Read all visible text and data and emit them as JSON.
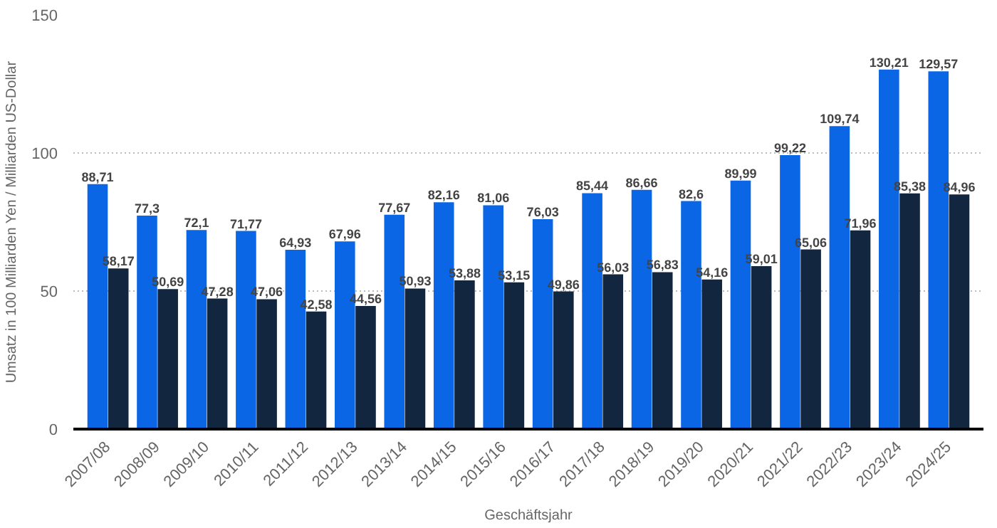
{
  "chart_data": {
    "type": "bar",
    "ylabel": "Umsatz in 100 Milliarden Yen / Milliarden US-Dollar",
    "xlabel": "Geschäftsjahr",
    "categories": [
      "2007/08",
      "2008/09",
      "2009/10",
      "2010/11",
      "2011/12",
      "2012/13",
      "2013/14",
      "2014/15",
      "2015/16",
      "2016/17",
      "2017/18",
      "2018/19",
      "2019/20",
      "2020/21",
      "2021/22",
      "2022/23",
      "2023/24",
      "2024/25"
    ],
    "series": [
      {
        "color": "#0a66e4",
        "values": [
          88.71,
          77.3,
          72.1,
          71.77,
          64.93,
          67.96,
          77.67,
          82.16,
          81.06,
          76.03,
          85.44,
          86.66,
          82.6,
          89.99,
          99.22,
          109.74,
          130.21,
          129.57
        ],
        "value_labels": [
          "88,71",
          "77,3",
          "72,1",
          "71,77",
          "64,93",
          "67,96",
          "77,67",
          "82,16",
          "81,06",
          "76,03",
          "85,44",
          "86,66",
          "82,6",
          "89,99",
          "99,22",
          "109,74",
          "130,21",
          "129,57"
        ]
      },
      {
        "color": "#12263f",
        "values": [
          58.17,
          50.69,
          47.28,
          47.06,
          42.58,
          44.56,
          50.93,
          53.88,
          53.15,
          49.86,
          56.03,
          56.83,
          54.16,
          59.01,
          65.06,
          71.96,
          85.38,
          84.96
        ],
        "value_labels": [
          "58,17",
          "50,69",
          "47,28",
          "47,06",
          "42,58",
          "44,56",
          "50,93",
          "53,88",
          "53,15",
          "49,86",
          "56,03",
          "56,83",
          "54,16",
          "59,01",
          "65,06",
          "71,96",
          "85,38",
          "84,96"
        ]
      }
    ],
    "ylim": [
      0,
      150
    ],
    "yticks": [
      0,
      50,
      100,
      150
    ],
    "grid": "y"
  }
}
